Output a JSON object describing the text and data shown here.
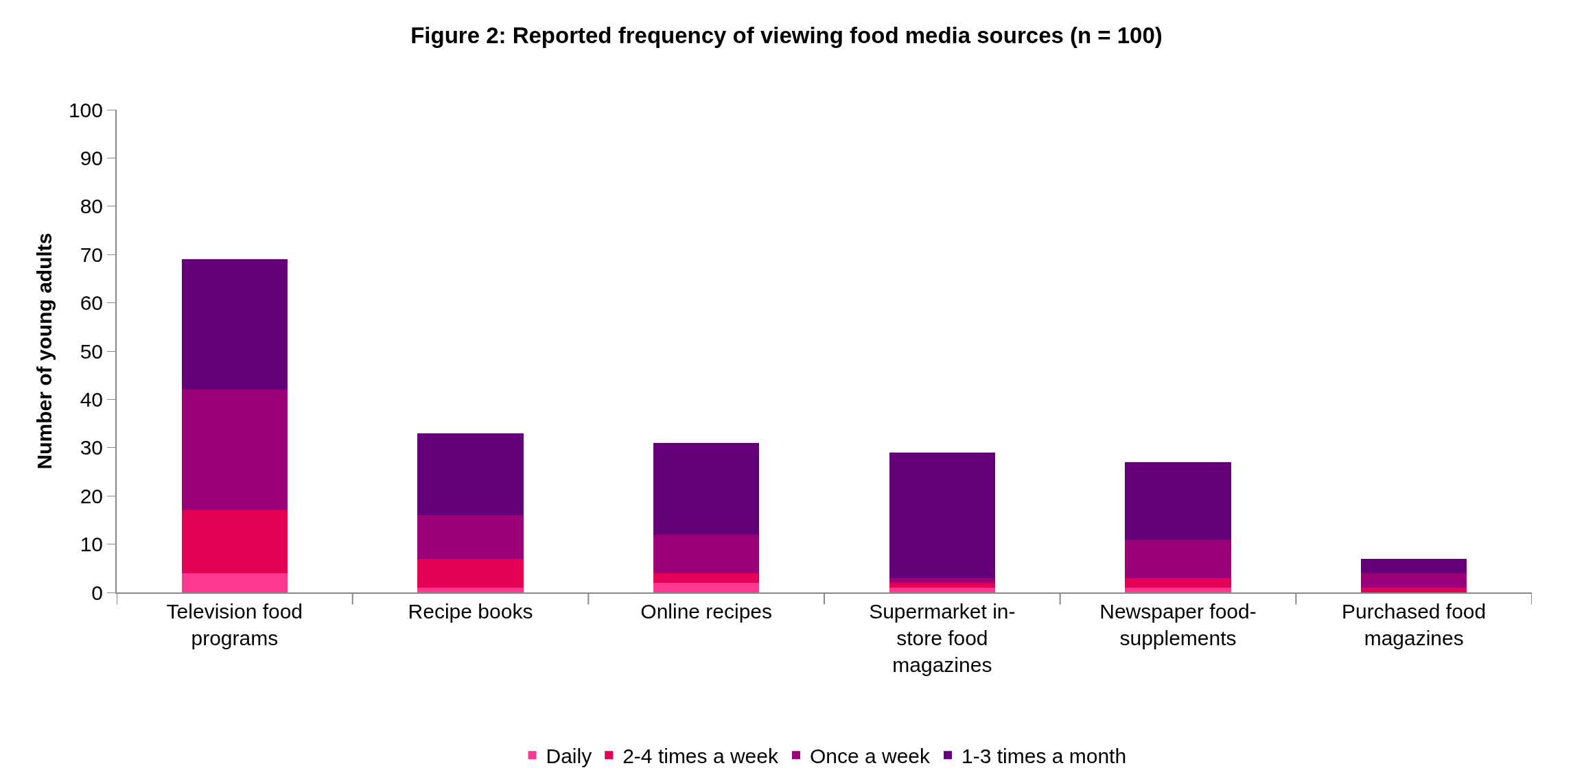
{
  "chart_data": {
    "type": "bar",
    "stacked": true,
    "title": "Figure 2: Reported frequency of viewing food media sources (n = 100)",
    "ylabel": "Number of young adults",
    "categories": [
      "Television food programs",
      "Recipe books",
      "Online recipes",
      "Supermarket in-store food magazines",
      "Newspaper food-supplements",
      "Purchased food magazines"
    ],
    "series": [
      {
        "name": "Daily",
        "color": "#ff3892",
        "values": [
          4,
          1,
          2,
          1,
          1,
          0
        ]
      },
      {
        "name": "2-4 times a week",
        "color": "#e40054",
        "values": [
          13,
          6,
          2,
          1,
          2,
          1
        ]
      },
      {
        "name": "Once a week",
        "color": "#990079",
        "values": [
          25,
          9,
          8,
          1,
          8,
          3
        ]
      },
      {
        "name": "1-3 times a month",
        "color": "#660079",
        "values": [
          27,
          17,
          19,
          26,
          16,
          3
        ]
      }
    ],
    "ylim": [
      0,
      100
    ],
    "yticks": [
      0,
      10,
      20,
      30,
      40,
      50,
      60,
      70,
      80,
      90,
      100
    ],
    "legend": "bottom"
  }
}
